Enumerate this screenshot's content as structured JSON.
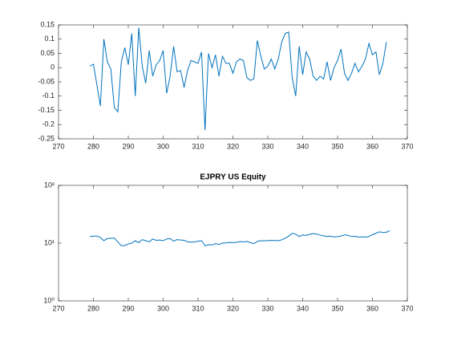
{
  "chart_data": [
    {
      "type": "line",
      "color": "#0072bd",
      "x": [
        279,
        280,
        281,
        282,
        283,
        284,
        285,
        286,
        287,
        288,
        289,
        290,
        291,
        292,
        293,
        294,
        295,
        296,
        297,
        298,
        299,
        300,
        301,
        302,
        303,
        304,
        305,
        306,
        307,
        308,
        309,
        310,
        311,
        312,
        313,
        314,
        315,
        316,
        317,
        318,
        319,
        320,
        321,
        322,
        323,
        324,
        325,
        326,
        327,
        328,
        329,
        330,
        331,
        332,
        333,
        334,
        335,
        336,
        337,
        338,
        339,
        340,
        341,
        342,
        343,
        344,
        345,
        346,
        347,
        348,
        349,
        350,
        351,
        352,
        353,
        354,
        355,
        356,
        357,
        358,
        359,
        360,
        361,
        362,
        363,
        364
      ],
      "values": [
        0.005,
        0.012,
        -0.06,
        -0.135,
        0.1,
        0.02,
        -0.005,
        -0.14,
        -0.155,
        0.02,
        0.07,
        0.01,
        0.12,
        -0.1,
        0.14,
        0.005,
        -0.055,
        0.06,
        -0.03,
        0.01,
        0.025,
        0.06,
        -0.09,
        -0.03,
        0.075,
        -0.015,
        -0.01,
        -0.07,
        -0.01,
        0.025,
        0.02,
        0.015,
        0.055,
        -0.22,
        0.05,
        0.0,
        0.045,
        -0.03,
        0.04,
        0.015,
        0.015,
        -0.02,
        0.02,
        0.03,
        0.025,
        -0.035,
        -0.045,
        -0.04,
        0.095,
        0.04,
        -0.005,
        0.005,
        0.03,
        -0.005,
        0.03,
        0.09,
        0.12,
        0.125,
        -0.035,
        -0.1,
        0.075,
        -0.025,
        0.055,
        0.03,
        -0.03,
        -0.045,
        -0.03,
        -0.04,
        0.02,
        -0.045,
        0.0,
        0.025,
        0.065,
        -0.02,
        -0.045,
        -0.02,
        0.015,
        -0.015,
        0.005,
        0.03,
        0.085,
        0.045,
        0.055,
        -0.025,
        0.015,
        0.09
      ],
      "xlim": [
        270,
        370
      ],
      "xticks": [
        270,
        280,
        290,
        300,
        310,
        320,
        330,
        340,
        350,
        360,
        370
      ],
      "ylim": [
        -0.25,
        0.15
      ],
      "yticks": [
        -0.25,
        -0.2,
        -0.15,
        -0.1,
        -0.05,
        0,
        0.05,
        0.1,
        0.15
      ]
    },
    {
      "type": "line",
      "title": "EJPRY US Equity",
      "color": "#0072bd",
      "yscale": "log",
      "x": [
        279,
        280,
        281,
        282,
        283,
        284,
        285,
        286,
        287,
        288,
        289,
        290,
        291,
        292,
        293,
        294,
        295,
        296,
        297,
        298,
        299,
        300,
        301,
        302,
        303,
        304,
        305,
        306,
        307,
        308,
        309,
        310,
        311,
        312,
        313,
        314,
        315,
        316,
        317,
        318,
        319,
        320,
        321,
        322,
        323,
        324,
        325,
        326,
        327,
        328,
        329,
        330,
        331,
        332,
        333,
        334,
        335,
        336,
        337,
        338,
        339,
        340,
        341,
        342,
        343,
        344,
        345,
        346,
        347,
        348,
        349,
        350,
        351,
        352,
        353,
        354,
        355,
        356,
        357,
        358,
        359,
        360,
        361,
        362,
        363,
        364,
        365
      ],
      "values": [
        13,
        13.2,
        13.3,
        12.5,
        11,
        12,
        12.1,
        12.2,
        10.5,
        9,
        9.1,
        9.7,
        10,
        11,
        10.2,
        11.5,
        11,
        10.5,
        11.8,
        11.2,
        11.3,
        11,
        11.8,
        12,
        10.8,
        11.5,
        11.3,
        11.2,
        10.5,
        10.4,
        10.5,
        10.8,
        11,
        9,
        9.4,
        9.3,
        9.8,
        9.5,
        10,
        10.1,
        10.3,
        10.2,
        10.3,
        10.6,
        10.5,
        10.7,
        10.2,
        9.8,
        10.7,
        11,
        11,
        11,
        11.2,
        11.1,
        11,
        11.4,
        12.2,
        13.2,
        14.8,
        14.3,
        13,
        13.8,
        13.6,
        14.2,
        14.6,
        14.3,
        13.8,
        13.4,
        13,
        13.2,
        12.8,
        12.9,
        13.3,
        13.9,
        13.6,
        13,
        13.1,
        12.7,
        12.8,
        12.7,
        13,
        14,
        14.8,
        15.7,
        15.3,
        15.4,
        16.5
      ],
      "xlim": [
        270,
        370
      ],
      "xticks": [
        270,
        280,
        290,
        300,
        310,
        320,
        330,
        340,
        350,
        360,
        370
      ],
      "ylim": [
        1,
        100
      ],
      "yticks": [
        {
          "value": 1,
          "label": "10⁰"
        },
        {
          "value": 10,
          "label": "10¹"
        },
        {
          "value": 100,
          "label": "10²"
        }
      ]
    }
  ]
}
